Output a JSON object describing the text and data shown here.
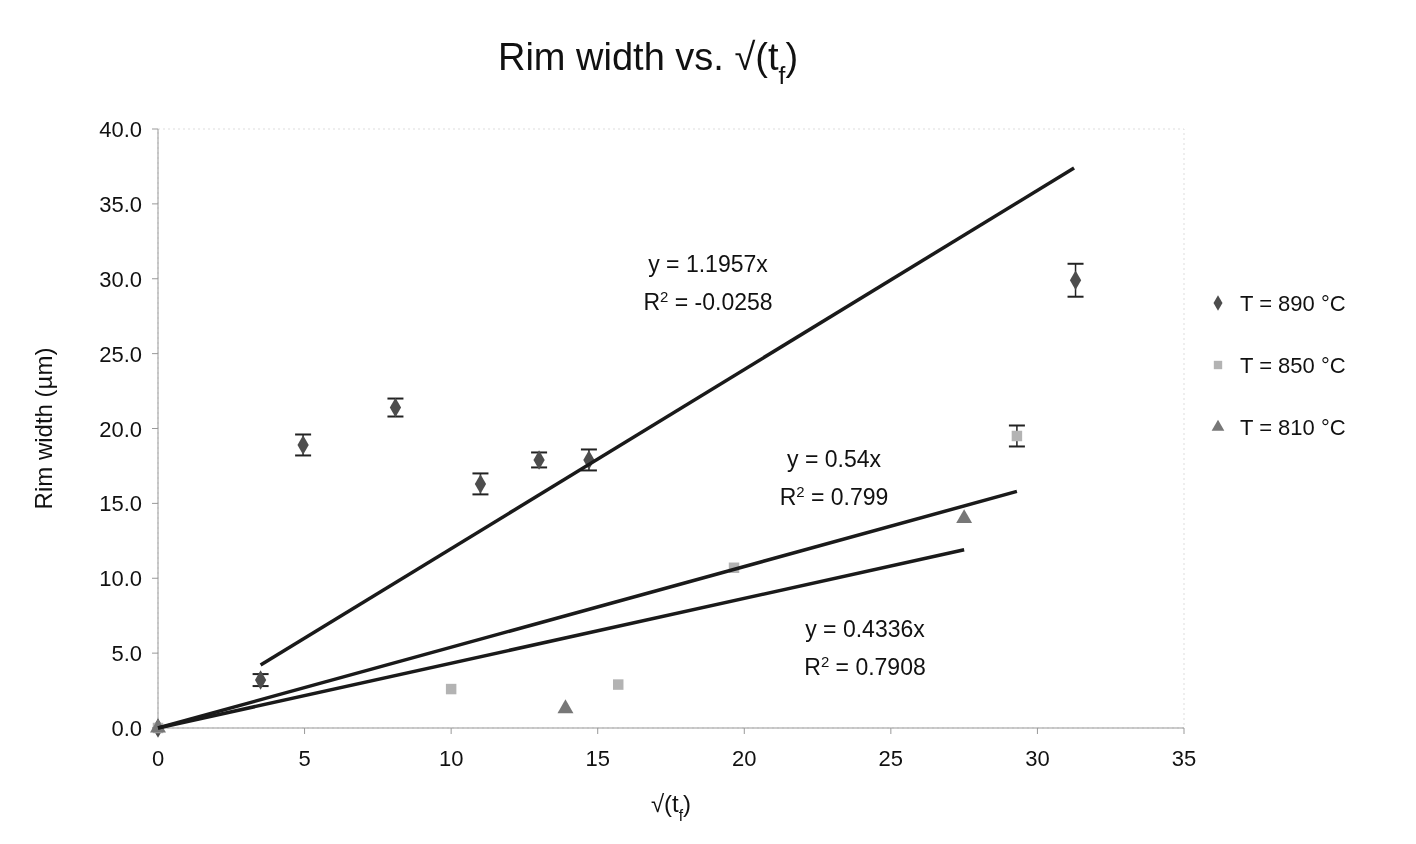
{
  "chart_data": {
    "type": "scatter",
    "title": "Rim width vs. √(t$_{f}$)",
    "xlabel": "√(t$_{f}$)",
    "ylabel": "Rim width (µm)",
    "xlim": [
      0,
      35
    ],
    "xticks": [
      0,
      5,
      10,
      15,
      20,
      25,
      30,
      35
    ],
    "ylim": [
      0,
      40
    ],
    "yticks": [
      {
        "value": 0,
        "label": "0.0"
      },
      {
        "value": 5,
        "label": "5.0"
      },
      {
        "value": 10,
        "label": "10.0"
      },
      {
        "value": 15,
        "label": "15.0"
      },
      {
        "value": 20,
        "label": "20.0"
      },
      {
        "value": 25,
        "label": "25.0"
      },
      {
        "value": 30,
        "label": "30.0"
      },
      {
        "value": 35,
        "label": "35.0"
      },
      {
        "value": 40,
        "label": "40.0"
      }
    ],
    "legend": "right",
    "series": [
      {
        "name": "T = 890 °C",
        "color": "#4d4d4d",
        "marker": "diamond",
        "x": [
          0,
          3.5,
          4.95,
          8.1,
          11.0,
          13.0,
          14.7,
          31.3
        ],
        "values": [
          0,
          3.2,
          18.9,
          21.4,
          16.3,
          17.9,
          17.9,
          29.9
        ],
        "errors": [
          null,
          0.4,
          0.7,
          0.6,
          0.7,
          0.5,
          0.7,
          1.1
        ]
      },
      {
        "name": "T = 850 °C",
        "color": "#b3b3b3",
        "marker": "square",
        "x": [
          0,
          10.0,
          15.7,
          19.65,
          29.3
        ],
        "values": [
          0,
          2.6,
          2.9,
          10.7,
          19.5
        ],
        "errors": [
          null,
          null,
          null,
          null,
          0.7
        ]
      },
      {
        "name": "T = 810 °C",
        "color": "#777777",
        "marker": "triangle",
        "x": [
          0,
          13.9,
          27.5
        ],
        "values": [
          0,
          1.3,
          14.0
        ],
        "errors": [
          null,
          null,
          null
        ]
      },
      {
        "type": "line",
        "color": "#1a1a1a",
        "marker": "none",
        "x": [
          3.5,
          31.25
        ],
        "values": [
          4.2,
          37.4
        ]
      },
      {
        "type": "line",
        "color": "#1a1a1a",
        "marker": "none",
        "x": [
          0,
          29.3
        ],
        "values": [
          0,
          15.8
        ]
      },
      {
        "type": "line",
        "color": "#1a1a1a",
        "marker": "none",
        "x": [
          0,
          27.5
        ],
        "values": [
          0,
          11.9
        ]
      }
    ],
    "annotations": [
      "y = 1.1957x\nR$^{2}$ = -0.0258",
      "y = 0.54x\nR$^{2}$ = 0.799",
      "y = 0.4336x\nR$^{2}$ = 0.7908"
    ]
  }
}
